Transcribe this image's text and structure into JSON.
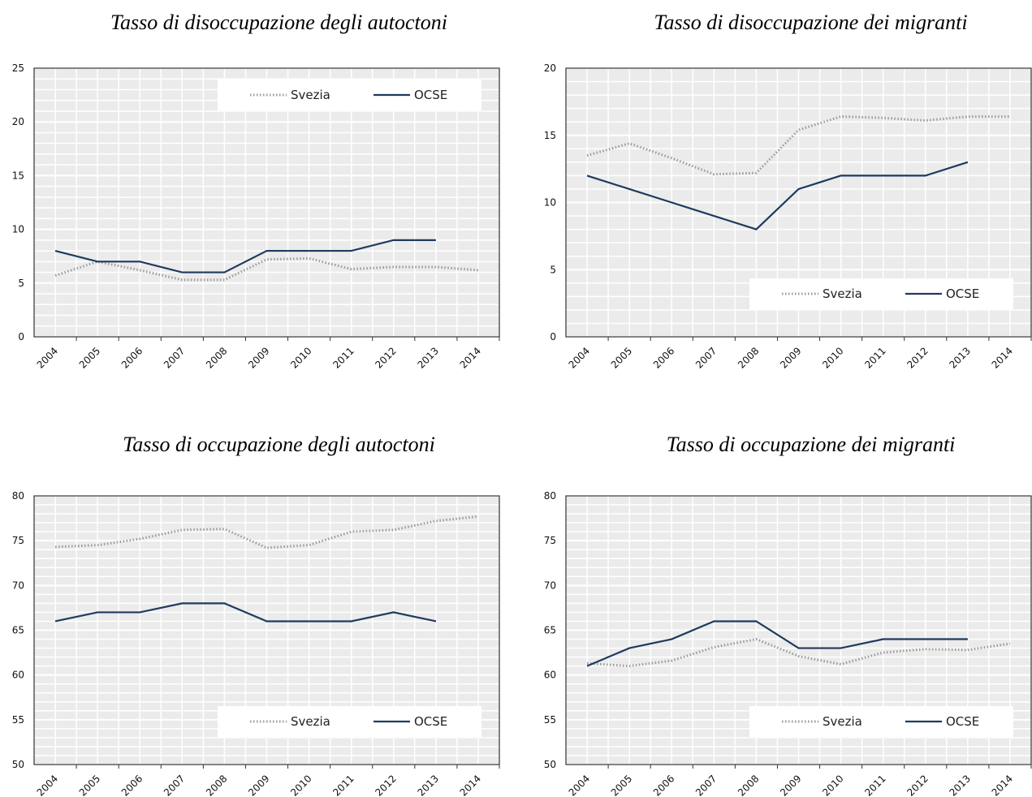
{
  "chart_data": [
    {
      "type": "line",
      "title": "Tasso di disoccupazione degli autoctoni",
      "categories": [
        "2004",
        "2005",
        "2006",
        "2007",
        "2008",
        "2009",
        "2010",
        "2011",
        "2012",
        "2013",
        "2014"
      ],
      "series": [
        {
          "name": "Svezia",
          "color": "#9a9a9a",
          "line_style": "dotted",
          "values": [
            5.7,
            7.0,
            6.2,
            5.3,
            5.3,
            7.2,
            7.3,
            6.3,
            6.5,
            6.5,
            6.2
          ]
        },
        {
          "name": "OCSE",
          "color": "#1f3a5f",
          "line_style": "solid",
          "values": [
            8,
            7,
            7,
            6,
            6,
            8,
            8,
            8,
            9,
            9,
            null
          ]
        }
      ],
      "ylim": [
        0,
        25
      ],
      "yticks": [
        0,
        5,
        10,
        15,
        20,
        25
      ],
      "grid": true,
      "legend": "upper right"
    },
    {
      "type": "line",
      "title": "Tasso di disoccupazione dei migranti",
      "categories": [
        "2004",
        "2005",
        "2006",
        "2007",
        "2008",
        "2009",
        "2010",
        "2011",
        "2012",
        "2013",
        "2014"
      ],
      "series": [
        {
          "name": "Svezia",
          "color": "#9a9a9a",
          "line_style": "dotted",
          "values": [
            13.5,
            14.4,
            13.3,
            12.1,
            12.2,
            15.4,
            16.4,
            16.3,
            16.1,
            16.4,
            16.4
          ]
        },
        {
          "name": "OCSE",
          "color": "#1f3a5f",
          "line_style": "solid",
          "values": [
            12,
            11,
            10,
            9,
            8,
            11,
            12,
            12,
            12,
            13,
            null
          ]
        }
      ],
      "ylim": [
        0,
        20
      ],
      "yticks": [
        0,
        5,
        10,
        15,
        20
      ],
      "grid": true,
      "legend": "lower right"
    },
    {
      "type": "line",
      "title": "Tasso di occupazione degli autoctoni",
      "categories": [
        "2004",
        "2005",
        "2006",
        "2007",
        "2008",
        "2009",
        "2010",
        "2011",
        "2012",
        "2013",
        "2014"
      ],
      "series": [
        {
          "name": "Svezia",
          "color": "#9a9a9a",
          "line_style": "dotted",
          "values": [
            74.3,
            74.5,
            75.2,
            76.2,
            76.3,
            74.2,
            74.5,
            76.0,
            76.2,
            77.2,
            77.7
          ]
        },
        {
          "name": "OCSE",
          "color": "#1f3a5f",
          "line_style": "solid",
          "values": [
            66,
            67,
            67,
            68,
            68,
            66,
            66,
            66,
            67,
            66,
            null
          ]
        }
      ],
      "ylim": [
        50,
        80
      ],
      "yticks": [
        50,
        55,
        60,
        65,
        70,
        75,
        80
      ],
      "grid": true,
      "legend": "lower right"
    },
    {
      "type": "line",
      "title": "Tasso di occupazione dei migranti",
      "categories": [
        "2004",
        "2005",
        "2006",
        "2007",
        "2008",
        "2009",
        "2010",
        "2011",
        "2012",
        "2013",
        "2014"
      ],
      "series": [
        {
          "name": "Svezia",
          "color": "#9a9a9a",
          "line_style": "dotted",
          "values": [
            61.3,
            61.0,
            61.6,
            63.1,
            64.0,
            62.1,
            61.2,
            62.5,
            62.9,
            62.8,
            63.5
          ]
        },
        {
          "name": "OCSE",
          "color": "#1f3a5f",
          "line_style": "solid",
          "values": [
            61,
            63,
            64,
            66,
            66,
            63,
            63,
            64,
            64,
            64,
            null
          ]
        }
      ],
      "ylim": [
        50,
        80
      ],
      "yticks": [
        50,
        55,
        60,
        65,
        70,
        75,
        80
      ],
      "grid": true,
      "legend": "lower right"
    }
  ]
}
